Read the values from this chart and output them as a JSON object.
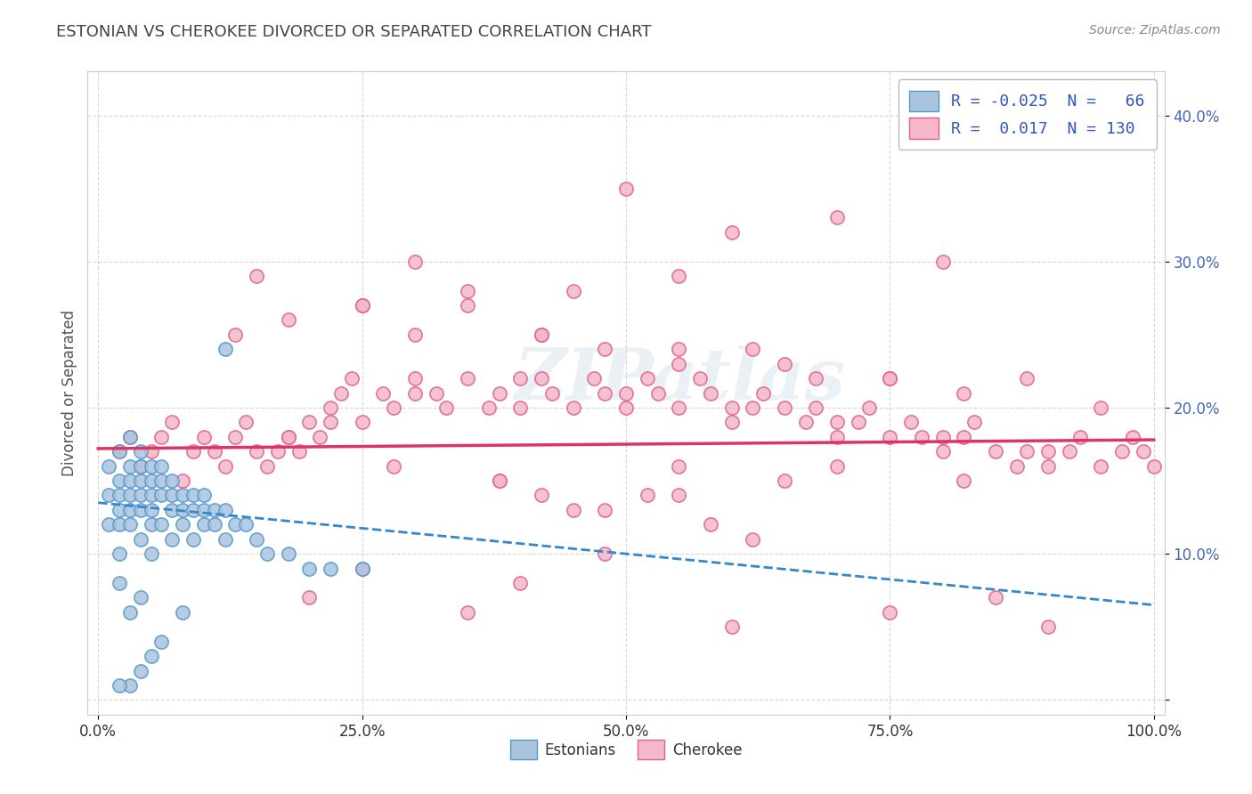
{
  "title": "ESTONIAN VS CHEROKEE DIVORCED OR SEPARATED CORRELATION CHART",
  "source_text": "Source: ZipAtlas.com",
  "ylabel": "Divorced or Separated",
  "xlim": [
    -0.01,
    1.01
  ],
  "ylim": [
    -0.01,
    0.43
  ],
  "xticks": [
    0.0,
    0.25,
    0.5,
    0.75,
    1.0
  ],
  "xtick_labels": [
    "0.0%",
    "25.0%",
    "50.0%",
    "75.0%",
    "100.0%"
  ],
  "yticks": [
    0.0,
    0.1,
    0.2,
    0.3,
    0.4
  ],
  "ytick_labels": [
    "",
    "10.0%",
    "20.0%",
    "30.0%",
    "40.0%"
  ],
  "estonian_color": "#aac4de",
  "cherokee_color": "#f4b8c8",
  "estonian_edge": "#5599cc",
  "cherokee_edge": "#e06090",
  "trend_estonian_color": "#3388cc",
  "trend_cherokee_color": "#dd3366",
  "watermark": "ZIPatlas",
  "background_color": "#ffffff",
  "grid_color": "#cccccc",
  "legend_estonian_label": "R = -0.025  N =   66",
  "legend_cherokee_label": "R =  0.017  N = 130",
  "est_trend_x0": 0.0,
  "est_trend_y0": 0.135,
  "est_trend_x1": 1.0,
  "est_trend_y1": 0.065,
  "cher_trend_x0": 0.0,
  "cher_trend_y0": 0.172,
  "cher_trend_x1": 1.0,
  "cher_trend_y1": 0.178,
  "estonian_x": [
    0.01,
    0.01,
    0.01,
    0.02,
    0.02,
    0.02,
    0.02,
    0.02,
    0.02,
    0.02,
    0.03,
    0.03,
    0.03,
    0.03,
    0.03,
    0.03,
    0.04,
    0.04,
    0.04,
    0.04,
    0.04,
    0.04,
    0.05,
    0.05,
    0.05,
    0.05,
    0.05,
    0.05,
    0.06,
    0.06,
    0.06,
    0.06,
    0.07,
    0.07,
    0.07,
    0.07,
    0.08,
    0.08,
    0.08,
    0.09,
    0.09,
    0.09,
    0.1,
    0.1,
    0.1,
    0.11,
    0.11,
    0.12,
    0.12,
    0.13,
    0.14,
    0.15,
    0.16,
    0.18,
    0.2,
    0.22,
    0.25,
    0.12,
    0.08,
    0.06,
    0.05,
    0.04,
    0.03,
    0.02,
    0.03,
    0.04
  ],
  "estonian_y": [
    0.16,
    0.14,
    0.12,
    0.17,
    0.15,
    0.14,
    0.13,
    0.12,
    0.1,
    0.08,
    0.18,
    0.16,
    0.15,
    0.14,
    0.13,
    0.12,
    0.17,
    0.16,
    0.15,
    0.14,
    0.13,
    0.11,
    0.16,
    0.15,
    0.14,
    0.13,
    0.12,
    0.1,
    0.16,
    0.15,
    0.14,
    0.12,
    0.15,
    0.14,
    0.13,
    0.11,
    0.14,
    0.13,
    0.12,
    0.14,
    0.13,
    0.11,
    0.14,
    0.13,
    0.12,
    0.13,
    0.12,
    0.13,
    0.11,
    0.12,
    0.12,
    0.11,
    0.1,
    0.1,
    0.09,
    0.09,
    0.09,
    0.24,
    0.06,
    0.04,
    0.03,
    0.02,
    0.01,
    0.01,
    0.06,
    0.07
  ],
  "cherokee_x": [
    0.02,
    0.03,
    0.04,
    0.05,
    0.06,
    0.07,
    0.08,
    0.09,
    0.1,
    0.11,
    0.12,
    0.13,
    0.14,
    0.15,
    0.16,
    0.17,
    0.18,
    0.19,
    0.2,
    0.21,
    0.22,
    0.23,
    0.24,
    0.25,
    0.27,
    0.28,
    0.3,
    0.32,
    0.33,
    0.35,
    0.37,
    0.38,
    0.4,
    0.42,
    0.43,
    0.45,
    0.47,
    0.48,
    0.5,
    0.52,
    0.53,
    0.55,
    0.57,
    0.58,
    0.6,
    0.62,
    0.63,
    0.65,
    0.67,
    0.68,
    0.7,
    0.72,
    0.73,
    0.75,
    0.77,
    0.78,
    0.8,
    0.82,
    0.83,
    0.85,
    0.87,
    0.88,
    0.9,
    0.92,
    0.93,
    0.95,
    0.97,
    0.98,
    0.99,
    1.0,
    0.13,
    0.18,
    0.25,
    0.3,
    0.35,
    0.42,
    0.48,
    0.55,
    0.62,
    0.68,
    0.75,
    0.82,
    0.88,
    0.95,
    0.38,
    0.55,
    0.7,
    0.82,
    0.42,
    0.55,
    0.65,
    0.75,
    0.22,
    0.3,
    0.4,
    0.5,
    0.6,
    0.7,
    0.8,
    0.9,
    0.45,
    0.55,
    0.35,
    0.25,
    0.15,
    0.55,
    0.65,
    0.48,
    0.58,
    0.45,
    0.52,
    0.38,
    0.28,
    0.42,
    0.18,
    0.6,
    0.7,
    0.8,
    0.5,
    0.3,
    0.4,
    0.2,
    0.25,
    0.35,
    0.6,
    0.75,
    0.85,
    0.9,
    0.48,
    0.62
  ],
  "cherokee_y": [
    0.17,
    0.18,
    0.16,
    0.17,
    0.18,
    0.19,
    0.15,
    0.17,
    0.18,
    0.17,
    0.16,
    0.18,
    0.19,
    0.17,
    0.16,
    0.17,
    0.18,
    0.17,
    0.19,
    0.18,
    0.2,
    0.21,
    0.22,
    0.19,
    0.21,
    0.2,
    0.22,
    0.21,
    0.2,
    0.22,
    0.2,
    0.21,
    0.2,
    0.22,
    0.21,
    0.2,
    0.22,
    0.21,
    0.2,
    0.22,
    0.21,
    0.2,
    0.22,
    0.21,
    0.19,
    0.2,
    0.21,
    0.2,
    0.19,
    0.2,
    0.18,
    0.19,
    0.2,
    0.18,
    0.19,
    0.18,
    0.17,
    0.18,
    0.19,
    0.17,
    0.16,
    0.17,
    0.16,
    0.17,
    0.18,
    0.16,
    0.17,
    0.18,
    0.17,
    0.16,
    0.25,
    0.26,
    0.27,
    0.25,
    0.27,
    0.25,
    0.24,
    0.23,
    0.24,
    0.22,
    0.22,
    0.21,
    0.22,
    0.2,
    0.15,
    0.14,
    0.16,
    0.15,
    0.25,
    0.24,
    0.23,
    0.22,
    0.19,
    0.21,
    0.22,
    0.21,
    0.2,
    0.19,
    0.18,
    0.17,
    0.28,
    0.29,
    0.28,
    0.27,
    0.29,
    0.16,
    0.15,
    0.13,
    0.12,
    0.13,
    0.14,
    0.15,
    0.16,
    0.14,
    0.18,
    0.32,
    0.33,
    0.3,
    0.35,
    0.3,
    0.08,
    0.07,
    0.09,
    0.06,
    0.05,
    0.06,
    0.07,
    0.05,
    0.1,
    0.11
  ]
}
